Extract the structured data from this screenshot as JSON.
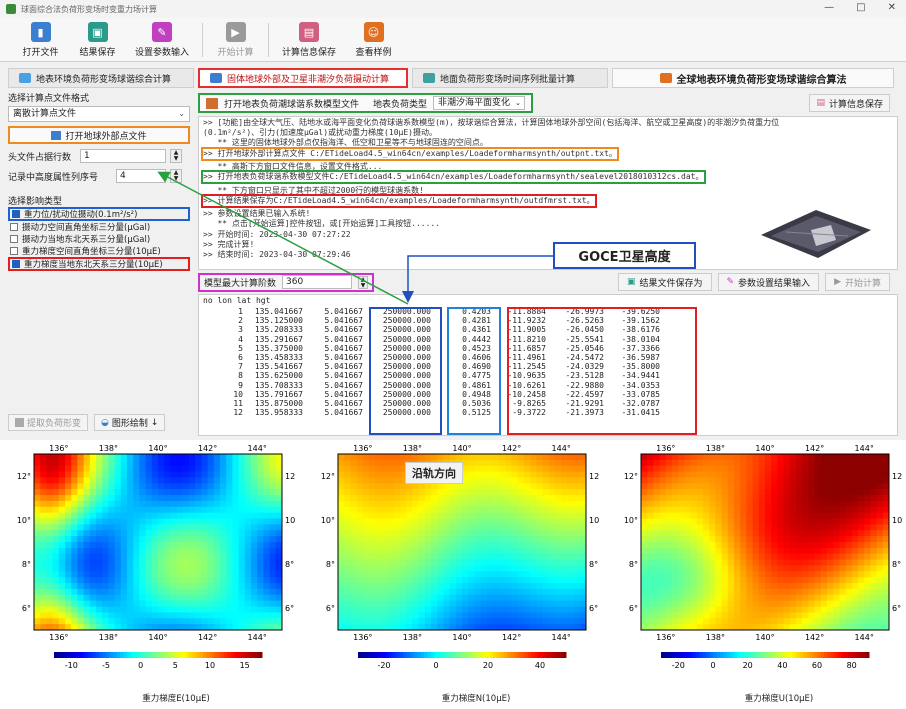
{
  "window": {
    "title": "球面综合法负荷形变场时变重力场计算"
  },
  "toolbar": {
    "buttons": [
      {
        "label": "打开文件",
        "color": "#3a7fd0"
      },
      {
        "label": "结果保存",
        "color": "#2a9a8a"
      },
      {
        "label": "设置参数输入",
        "color": "#c040c0"
      },
      {
        "label": "开始计算",
        "color": "#9a9a9a",
        "disabled": true
      },
      {
        "label": "计算信息保存",
        "color": "#d06080"
      },
      {
        "label": "查看样例",
        "color": "#e07020"
      }
    ]
  },
  "tabs": {
    "t1": "地表环境负荷形变场球谐综合计算",
    "t2": "固体地球外部及卫星非潮汐负荷摄动计算",
    "t3": "地面负荷形变场时间序列批量计算",
    "t4": "全球地表环境负荷形变场球谐综合算法"
  },
  "left": {
    "format_label": "选择计算点文件格式",
    "format_value": "离散计算点文件",
    "open_button": "打开地球外部点文件",
    "header_rows_label": "头文件占据行数",
    "header_rows_value": "1",
    "height_col_label": "记录中高度属性列序号",
    "height_col_value": "4",
    "effect_title": "选择影响类型",
    "effects": [
      {
        "label": "重力位/扰动位摄动(0.1m²/s²)",
        "checked": true
      },
      {
        "label": "摄动力空间直角坐标三分量(μGal)",
        "checked": false
      },
      {
        "label": "摄动力当地东北天系三分量(μGal)",
        "checked": false
      },
      {
        "label": "重力梯度空间直角坐标三分量(10μE)",
        "checked": false
      },
      {
        "label": "重力梯度当地东北天系三分量(10μE)",
        "checked": true
      }
    ],
    "extract_button": "提取负荷形变",
    "plot_button": "图形绘制"
  },
  "subbar": {
    "open_model_label": "打开地表负荷潮球谐系数模型文件",
    "load_type_label": "地表负荷类型",
    "load_type_value": "非潮汐海平面变化",
    "save_info_label": "计算信息保存"
  },
  "log_lines": [
    ">> [功能]由全球大气压、陆地水或海平面变化负荷球谐系数模型(m)，按球谐综合算法，计算固体地球外部空间(包括海洋、航空或卫星高度)的非潮汐负荷重力位",
    "(0.1m²/s²)、引力(加速度μGal)或扰动重力梯度(10μE)摄动。",
    "   ** 这里的固体地球外部点仅指海洋、低空和卫星等不与地球固连的空间点。",
    ">> 打开地球外部计算点文件 C:/ETideLoad4.5_win64cn/examples/Loadeformharmsynth/outpnt.txt。",
    "   ** 高斯下方窗口文件信息，设置文件格式...",
    ">> 打开地表负荷球谐系数模型文件C:/ETideLoad4.5_win64cn/examples/Loadeformharmsynth/sealevel2018010312cs.dat。",
    "   ** 下方窗口只显示了其中不超过2000行的模型球谐系数!",
    ">> 计算结果保存为C:/ETideLoad4.5_win64cn/examples/Loadeformharmsynth/outdfmrst.txt。",
    ">> 参数设置结果已输入系统!",
    "   ** 点击[开始运算]控件按钮，或[开始运算]工具按钮......",
    ">> 开始时间: 2023-04-30 07:27:22",
    ">> 完成计算!",
    ">> 结束时间: 2023-04-30 07:29:46"
  ],
  "goce_label": "GOCE卫星高度",
  "ctrl": {
    "degree_label": "模型最大计算阶数",
    "degree_value": "360",
    "save_result": "结果文件保存为",
    "param_input": "参数设置结果输入",
    "start_calc": "开始计算"
  },
  "table_header": "no lon lat hgt",
  "table_rows": [
    [
      "1",
      "135.041667",
      "5.041667",
      "250000.000",
      "0.4203",
      "-11.8884",
      "-26.9973",
      "-39.6250"
    ],
    [
      "2",
      "135.125000",
      "5.041667",
      "250000.000",
      "0.4281",
      "-11.9232",
      "-26.5263",
      "-39.1562"
    ],
    [
      "3",
      "135.208333",
      "5.041667",
      "250000.000",
      "0.4361",
      "-11.9005",
      "-26.0450",
      "-38.6176"
    ],
    [
      "4",
      "135.291667",
      "5.041667",
      "250000.000",
      "0.4442",
      "-11.8210",
      "-25.5541",
      "-38.0104"
    ],
    [
      "5",
      "135.375000",
      "5.041667",
      "250000.000",
      "0.4523",
      "-11.6857",
      "-25.0546",
      "-37.3366"
    ],
    [
      "6",
      "135.458333",
      "5.041667",
      "250000.000",
      "0.4606",
      "-11.4961",
      "-24.5472",
      "-36.5987"
    ],
    [
      "7",
      "135.541667",
      "5.041667",
      "250000.000",
      "0.4690",
      "-11.2545",
      "-24.0329",
      "-35.8000"
    ],
    [
      "8",
      "135.625000",
      "5.041667",
      "250000.000",
      "0.4775",
      "-10.9635",
      "-23.5128",
      "-34.9441"
    ],
    [
      "9",
      "135.708333",
      "5.041667",
      "250000.000",
      "0.4861",
      "-10.6261",
      "-22.9880",
      "-34.0353"
    ],
    [
      "10",
      "135.791667",
      "5.041667",
      "250000.000",
      "0.4948",
      "-10.2458",
      "-22.4597",
      "-33.0785"
    ],
    [
      "11",
      "135.875000",
      "5.041667",
      "250000.000",
      "0.5036",
      "-9.8265",
      "-21.9291",
      "-32.0787"
    ],
    [
      "12",
      "135.958333",
      "5.041667",
      "250000.000",
      "0.5125",
      "-9.3722",
      "-21.3973",
      "-31.0415"
    ]
  ],
  "plots": {
    "along_track": "沿轨方向",
    "lon_ticks": [
      "136°",
      "138°",
      "140°",
      "142°",
      "144°"
    ],
    "lat_ticks": [
      "12°",
      "10°",
      "8°",
      "6°"
    ],
    "items": [
      {
        "caption": "重力梯度E(10μE)",
        "cbar_ticks": [
          "-10",
          "-5",
          "0",
          "5",
          "10",
          "15"
        ]
      },
      {
        "caption": "重力梯度N(10μE)",
        "cbar_ticks": [
          "-20",
          "0",
          "20",
          "40"
        ]
      },
      {
        "caption": "重力梯度U(10μE)",
        "cbar_ticks": [
          "-20",
          "0",
          "20",
          "40",
          "60",
          "80"
        ]
      }
    ]
  },
  "colors": {
    "red": "#e02020",
    "blue": "#2050c0",
    "orange": "#f08a20",
    "green": "#2aa040",
    "magenta": "#d030d0"
  }
}
